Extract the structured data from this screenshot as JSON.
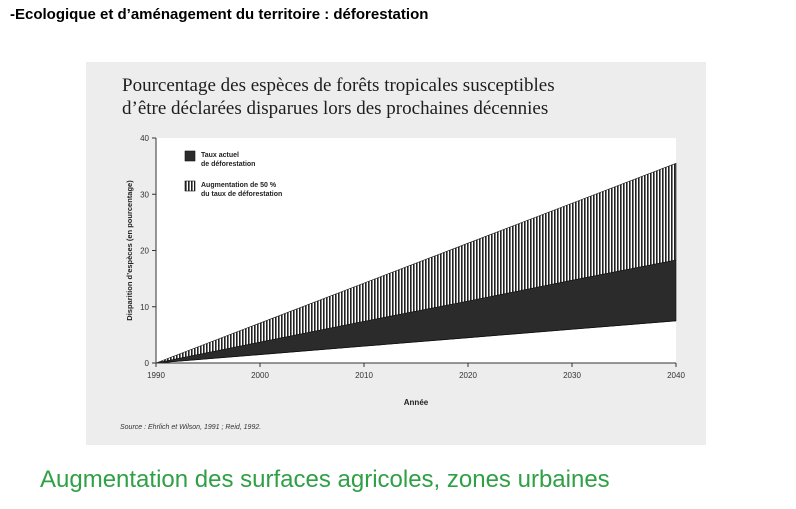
{
  "page": {
    "heading": "-Ecologique et d’aménagement du territoire : déforestation",
    "caption": "Augmentation des surfaces agricoles, zones urbaines"
  },
  "chart_data": {
    "type": "area",
    "title": "Pourcentage des espèces de forêts tropicales susceptibles",
    "subtitle": "d’être déclarées disparues lors des prochaines décennies",
    "xlabel": "Année",
    "ylabel": "Disparition d’espèces (en pourcentage)",
    "xlim": [
      1990,
      2040
    ],
    "ylim": [
      0,
      40
    ],
    "x_ticks": [
      1990,
      2000,
      2010,
      2020,
      2030,
      2040
    ],
    "y_ticks": [
      0,
      10,
      20,
      30,
      40
    ],
    "grid": false,
    "legend_position": "top-left",
    "x": [
      1990,
      2000,
      2010,
      2020,
      2030,
      2040
    ],
    "series": [
      {
        "name": "Taux actuel de déforestation",
        "lower": [
          0,
          1.5,
          3,
          4.5,
          6,
          7.5
        ],
        "upper": [
          0,
          3.7,
          7.4,
          11,
          14.7,
          18.3
        ],
        "fill": "dark"
      },
      {
        "name": "Augmentation de 50 % du taux de déforestation",
        "lower": [
          0,
          3.7,
          7.4,
          11,
          14.7,
          18.3
        ],
        "upper": [
          0,
          7.1,
          14.2,
          21.3,
          28.4,
          35.5
        ],
        "fill": "hatched"
      }
    ],
    "legend": [
      {
        "line1": "Taux actuel",
        "line2": "de déforestation"
      },
      {
        "line1": "Augmentation de 50 %",
        "line2": "du taux de déforestation"
      }
    ],
    "source": "Source : Ehrlich et Wilson, 1991 ; Reid, 1992."
  }
}
